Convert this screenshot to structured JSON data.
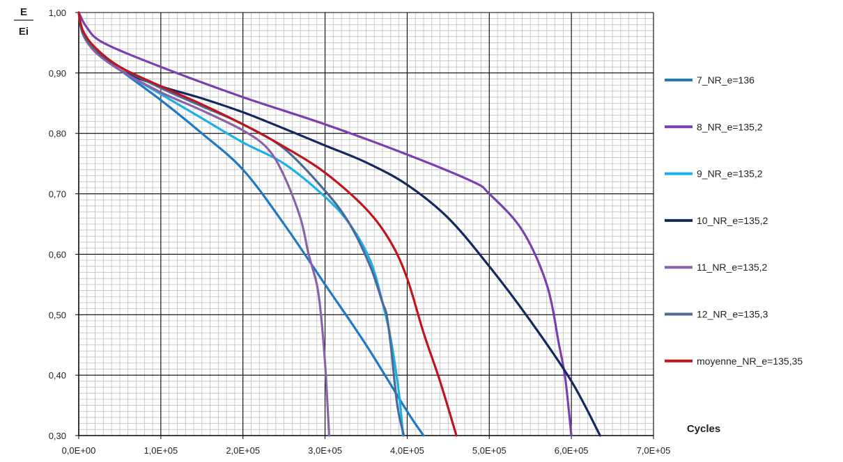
{
  "chart_data": {
    "type": "line",
    "title": "",
    "ylabel_top": "E",
    "ylabel_bottom": "Ei",
    "xlabel": "Cycles",
    "xlim": [
      0,
      700000
    ],
    "ylim": [
      0.3,
      1.0
    ],
    "xticks": [
      0,
      100000,
      200000,
      300000,
      400000,
      500000,
      600000,
      700000
    ],
    "xtick_labels": [
      "0,0E+00",
      "1,0E+05",
      "2,0E+05",
      "3,0E+05",
      "4,0E+05",
      "5,0E+05",
      "6,0E+05",
      "7,0E+05"
    ],
    "yticks": [
      0.3,
      0.4,
      0.5,
      0.6,
      0.7,
      0.8,
      0.9,
      1.0
    ],
    "ytick_labels": [
      "0,30",
      "0,40",
      "0,50",
      "0,60",
      "0,70",
      "0,80",
      "0,90",
      "1,00"
    ],
    "grid": true,
    "legend_position": "right",
    "series": [
      {
        "name": "7_NR_e=136",
        "color": "#1f78c1",
        "x": [
          0,
          5000,
          20000,
          50000,
          100000,
          150000,
          200000,
          250000,
          300000,
          350000,
          400000,
          420000
        ],
        "y": [
          1.0,
          0.965,
          0.935,
          0.905,
          0.855,
          0.8,
          0.74,
          0.65,
          0.55,
          0.45,
          0.34,
          0.3
        ]
      },
      {
        "name": "8_NR_e=135,2",
        "color": "#7b3fb0",
        "x": [
          0,
          10000,
          30000,
          100000,
          200000,
          300000,
          400000,
          480000,
          500000,
          540000,
          570000,
          585000,
          592000,
          597000,
          600000
        ],
        "y": [
          1.0,
          0.975,
          0.95,
          0.91,
          0.86,
          0.815,
          0.765,
          0.72,
          0.7,
          0.64,
          0.55,
          0.45,
          0.4,
          0.34,
          0.3
        ]
      },
      {
        "name": "9_NR_e=135,2",
        "color": "#1cb0e8",
        "x": [
          0,
          5000,
          20000,
          50000,
          100000,
          150000,
          200000,
          250000,
          300000,
          330000,
          355000,
          370000,
          380000,
          390000,
          395000
        ],
        "y": [
          1.0,
          0.965,
          0.935,
          0.905,
          0.865,
          0.825,
          0.785,
          0.75,
          0.695,
          0.65,
          0.59,
          0.52,
          0.46,
          0.37,
          0.3
        ]
      },
      {
        "name": "10_NR_e=135,2",
        "color": "#14285e",
        "x": [
          0,
          5000,
          20000,
          50000,
          100000,
          150000,
          200000,
          250000,
          300000,
          350000,
          400000,
          450000,
          500000,
          550000,
          600000,
          635000
        ],
        "y": [
          1.0,
          0.97,
          0.94,
          0.905,
          0.878,
          0.858,
          0.835,
          0.808,
          0.78,
          0.752,
          0.715,
          0.66,
          0.58,
          0.49,
          0.39,
          0.3
        ]
      },
      {
        "name": "11_NR_e=135,2",
        "color": "#8b62a8",
        "x": [
          0,
          5000,
          20000,
          50000,
          100000,
          150000,
          200000,
          230000,
          250000,
          270000,
          280000,
          290000,
          295000,
          300000,
          303000,
          305000
        ],
        "y": [
          1.0,
          0.965,
          0.935,
          0.905,
          0.868,
          0.838,
          0.805,
          0.775,
          0.73,
          0.66,
          0.6,
          0.55,
          0.5,
          0.42,
          0.35,
          0.3
        ]
      },
      {
        "name": "12_NR_e=135,3",
        "color": "#4a6a98",
        "x": [
          0,
          5000,
          20000,
          50000,
          100000,
          150000,
          200000,
          250000,
          300000,
          330000,
          355000,
          370000,
          375000,
          380000,
          388000,
          396000
        ],
        "y": [
          1.0,
          0.965,
          0.94,
          0.91,
          0.875,
          0.845,
          0.815,
          0.775,
          0.705,
          0.65,
          0.58,
          0.52,
          0.5,
          0.45,
          0.35,
          0.3
        ]
      },
      {
        "name": "moyenne_NR_e=135,35",
        "color": "#c0141c",
        "x": [
          0,
          5000,
          20000,
          50000,
          100000,
          150000,
          200000,
          250000,
          300000,
          350000,
          380000,
          400000,
          420000,
          440000,
          460000
        ],
        "y": [
          1.0,
          0.97,
          0.942,
          0.91,
          0.878,
          0.848,
          0.815,
          0.778,
          0.735,
          0.675,
          0.62,
          0.56,
          0.47,
          0.39,
          0.3
        ]
      }
    ]
  }
}
